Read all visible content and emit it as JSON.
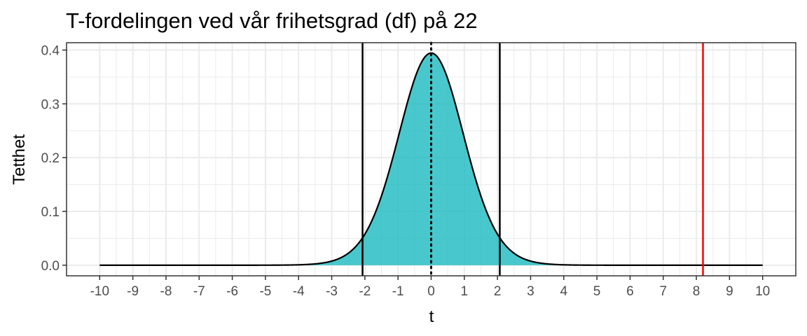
{
  "chart_data": {
    "type": "area",
    "title": "T-fordelingen ved vår frihetsgrad (df) på 22",
    "xlabel": "t",
    "ylabel": "Tetthet",
    "df": 22,
    "xlim": [
      -10,
      10
    ],
    "ylim": [
      0,
      0.4
    ],
    "x_ticks": [
      "-10",
      "-9",
      "-8",
      "-7",
      "-6",
      "-5",
      "-4",
      "-3",
      "-2",
      "-1",
      "0",
      "1",
      "2",
      "3",
      "4",
      "5",
      "6",
      "7",
      "8",
      "9",
      "10"
    ],
    "y_ticks": [
      "0.0",
      "0.1",
      "0.2",
      "0.3",
      "0.4"
    ],
    "grid": true,
    "fill_range": [
      -4,
      4
    ],
    "vlines": [
      {
        "x": -2.07,
        "color": "#000000",
        "style": "solid"
      },
      {
        "x": 0,
        "color": "#000000",
        "style": "dotted"
      },
      {
        "x": 2.07,
        "color": "#000000",
        "style": "solid"
      },
      {
        "x": 8.2,
        "color": "#ff0000",
        "style": "solid"
      }
    ],
    "colors": {
      "fill": "#1ABABF",
      "curve": "#000000",
      "grid": "#ebebeb",
      "border": "#333333"
    }
  }
}
